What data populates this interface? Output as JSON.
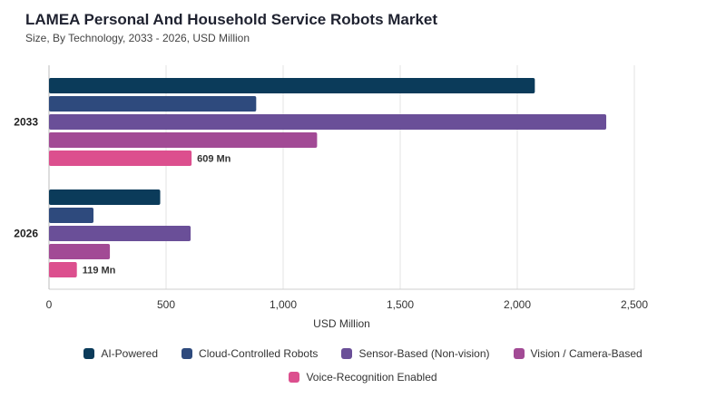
{
  "header": {
    "title": "LAMEA Personal And Household Service Robots Market",
    "subtitle": "Size, By Technology, 2033 - 2026, USD Million"
  },
  "chart_data": {
    "type": "bar",
    "orientation": "horizontal",
    "title": "LAMEA Personal And Household Service Robots Market",
    "subtitle": "Size, By Technology, 2033 - 2026, USD Million",
    "xlabel": "USD Million",
    "ylabel": "",
    "xlim": [
      0,
      2500
    ],
    "xticks": [
      0,
      500,
      1000,
      1500,
      2000,
      2500
    ],
    "xtick_labels": [
      "0",
      "500",
      "1,000",
      "1,500",
      "2,000",
      "2,500"
    ],
    "categories": [
      "2033",
      "2026"
    ],
    "grid": "vertical",
    "legend_position": "bottom",
    "series": [
      {
        "name": "AI-Powered",
        "color": "#0b3b5a",
        "values": [
          2075,
          475
        ]
      },
      {
        "name": "Cloud-Controlled Robots",
        "color": "#2e4a7d",
        "values": [
          885,
          190
        ]
      },
      {
        "name": "Sensor-Based (Non-vision)",
        "color": "#6a4f98",
        "values": [
          2380,
          605
        ]
      },
      {
        "name": "Vision / Camera-Based",
        "color": "#a24a95",
        "values": [
          1145,
          260
        ]
      },
      {
        "name": "Voice-Recognition Enabled",
        "color": "#dc4f8e",
        "values": [
          609,
          119
        ]
      }
    ],
    "annotations": [
      {
        "series": "Voice-Recognition Enabled",
        "category": "2033",
        "text": "609 Mn"
      },
      {
        "series": "Voice-Recognition Enabled",
        "category": "2026",
        "text": "119 Mn"
      }
    ]
  }
}
